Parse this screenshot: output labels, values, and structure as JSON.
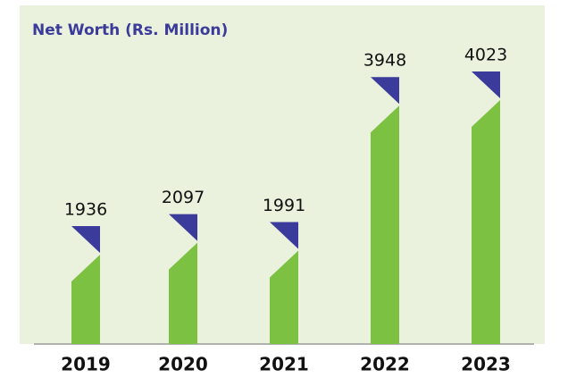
{
  "chart_data": {
    "type": "bar",
    "title": "Net Worth (Rs. Million)",
    "categories": [
      "2019",
      "2020",
      "2021",
      "2022",
      "2023"
    ],
    "values": [
      1936,
      2097,
      1991,
      3948,
      4023
    ],
    "color": "#7dc142",
    "flag_color": "#3b3b9b",
    "ylim": [
      730,
      4650
    ]
  }
}
